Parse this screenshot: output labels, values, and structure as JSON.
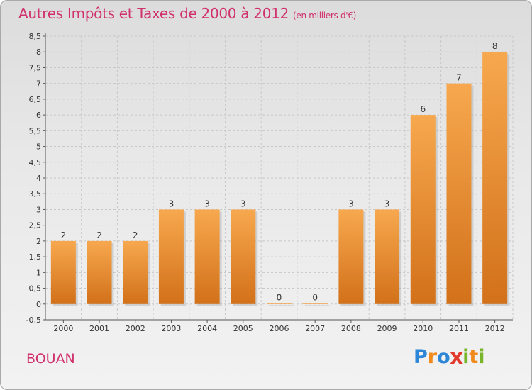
{
  "title": "Autres Impôts et Taxes de 2000 à 2012",
  "subtitle": "(en milliers d'€)",
  "commune": "BOUAN",
  "logo": {
    "text": "Proxiti",
    "letters": [
      {
        "char": "P",
        "color": "#2e86d6"
      },
      {
        "char": "r",
        "color": "#f08a1c"
      },
      {
        "char": "o",
        "color": "#2e86d6"
      },
      {
        "char": "x",
        "color": "#e23b2e"
      },
      {
        "char": "i",
        "color": "#79b42a"
      },
      {
        "char": "t",
        "color": "#f08a1c"
      },
      {
        "char": "i",
        "color": "#79b42a"
      }
    ]
  },
  "colors": {
    "title": "#d0306c",
    "bar_light": "#f7a84e",
    "bar_dark": "#d2711a",
    "grid": "#c8c8c8",
    "axis_text": "#333333"
  },
  "chart_data": {
    "type": "bar",
    "title": "Autres Impôts et Taxes de 2000 à 2012",
    "subtitle": "(en milliers d'€)",
    "categories": [
      "2000",
      "2001",
      "2002",
      "2003",
      "2004",
      "2005",
      "2006",
      "2007",
      "2008",
      "2009",
      "2010",
      "2011",
      "2012"
    ],
    "values": [
      2,
      2,
      2,
      3,
      3,
      3,
      0,
      0,
      3,
      3,
      6,
      7,
      8
    ],
    "data_labels": [
      "2",
      "2",
      "2",
      "3",
      "3",
      "3",
      "0",
      "0",
      "3",
      "3",
      "6",
      "7",
      "8"
    ],
    "ylim": [
      -0.5,
      8.5
    ],
    "yticks": [
      -0.5,
      0,
      0.5,
      1,
      1.5,
      2,
      2.5,
      3,
      3.5,
      4,
      4.5,
      5,
      5.5,
      6,
      6.5,
      7,
      7.5,
      8,
      8.5
    ],
    "ytick_labels": [
      "-0,5",
      "0",
      "0,5",
      "1",
      "1,5",
      "2",
      "2,5",
      "3",
      "3,5",
      "4",
      "4,5",
      "5",
      "5,5",
      "6",
      "6,5",
      "7",
      "7,5",
      "8",
      "8,5"
    ],
    "grid": true,
    "xlabel": "",
    "ylabel": ""
  }
}
